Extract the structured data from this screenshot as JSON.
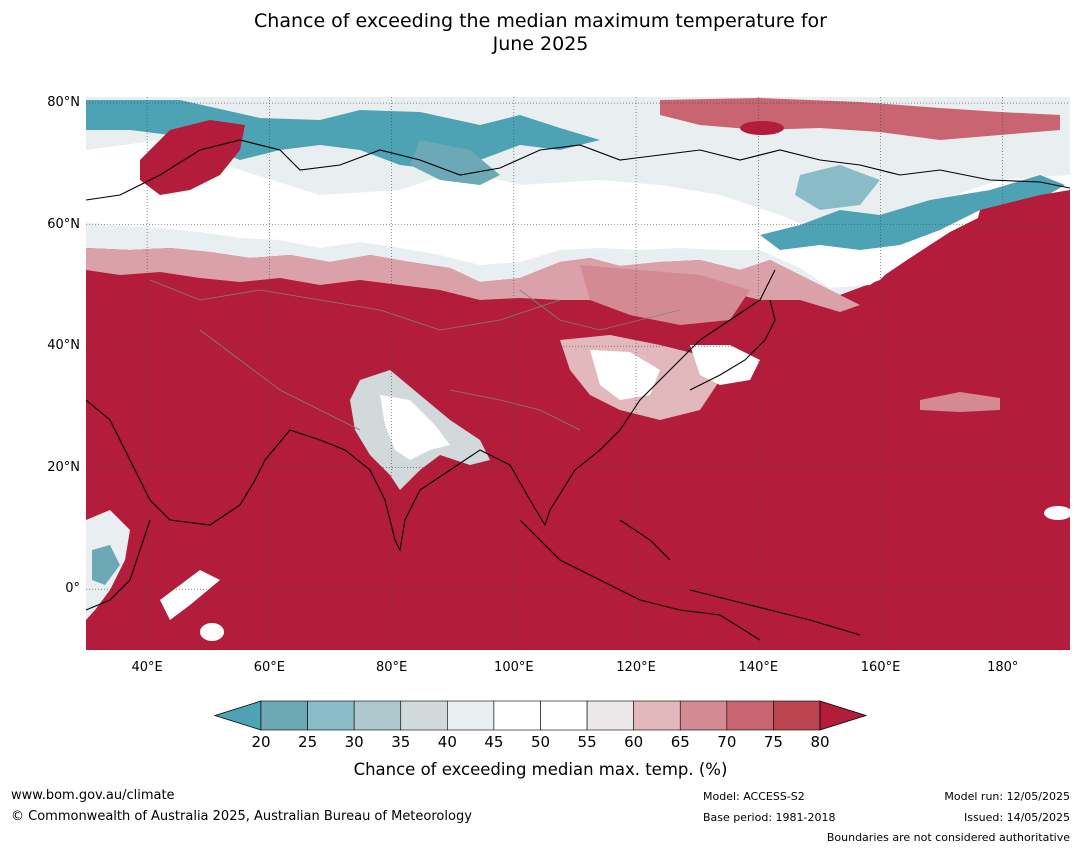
{
  "title_line1": "Chance of exceeding the median maximum temperature for",
  "title_line2": "June 2025",
  "lat_labels": [
    {
      "text": "80°N",
      "lat": 80
    },
    {
      "text": "60°N",
      "lat": 60
    },
    {
      "text": "40°N",
      "lat": 40
    },
    {
      "text": "20°N",
      "lat": 20
    },
    {
      "text": "0°",
      "lat": 0
    }
  ],
  "lon_labels": [
    {
      "text": "40°E",
      "lon": 40
    },
    {
      "text": "60°E",
      "lon": 60
    },
    {
      "text": "80°E",
      "lon": 80
    },
    {
      "text": "100°E",
      "lon": 100
    },
    {
      "text": "120°E",
      "lon": 120
    },
    {
      "text": "140°E",
      "lon": 140
    },
    {
      "text": "160°E",
      "lon": 160
    },
    {
      "text": "180°",
      "lon": 180
    }
  ],
  "map_extent": {
    "lon_min": 30,
    "lon_max": 191,
    "lat_min": -10,
    "lat_max": 81
  },
  "colorbar": {
    "ticks": [
      "20",
      "25",
      "30",
      "35",
      "40",
      "45",
      "50",
      "55",
      "60",
      "65",
      "70",
      "75",
      "80"
    ],
    "colors": [
      "#6ca8b6",
      "#8abcc7",
      "#aec7cc",
      "#d1d9db",
      "#e9eff1",
      "#ffffff",
      "#ffffff",
      "#ece8e9",
      "#e2b8bd",
      "#d48a93",
      "#c96570",
      "#bb4451"
    ],
    "low_color": "#4da3b4",
    "high_color": "#b31c3a",
    "caption": "Chance of exceeding median max. temp. (%)"
  },
  "footer": {
    "website": "www.bom.gov.au/climate",
    "copyright": "© Commonwealth of Australia 2025, Australian Bureau of Meteorology",
    "model": "Model: ACCESS-S2",
    "base_period": "Base period: 1981-2018",
    "model_run": "Model run: 12/05/2025",
    "issued": "Issued: 14/05/2025",
    "disclaimer": "Boundaries are not considered authoritative"
  }
}
